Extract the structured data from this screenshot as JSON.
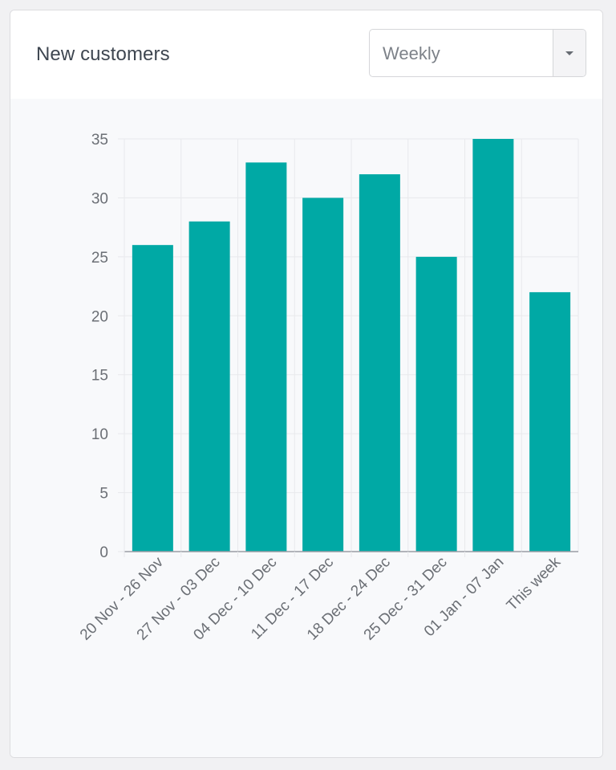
{
  "card": {
    "title": "New customers",
    "period_select": {
      "value": "Weekly"
    }
  },
  "chart_data": {
    "type": "bar",
    "title": "",
    "xlabel": "",
    "ylabel": "",
    "categories": [
      "20 Nov - 26 Nov",
      "27 Nov - 03 Dec",
      "04 Dec - 10 Dec",
      "11 Dec - 17 Dec",
      "18 Dec - 24 Dec",
      "25 Dec - 31 Dec",
      "01 Jan - 07 Jan",
      "This week"
    ],
    "values": [
      26,
      28,
      33,
      30,
      32,
      25,
      35,
      22
    ],
    "ylim": [
      0,
      35
    ],
    "yticks": [
      0,
      5,
      10,
      15,
      20,
      25,
      30,
      35
    ],
    "grid": true,
    "legend": "none",
    "colors": {
      "bar": "#00a9a5",
      "grid": "#e8e9ec",
      "axis": "#9a9ea4",
      "tick_text": "#6b6f75"
    }
  }
}
